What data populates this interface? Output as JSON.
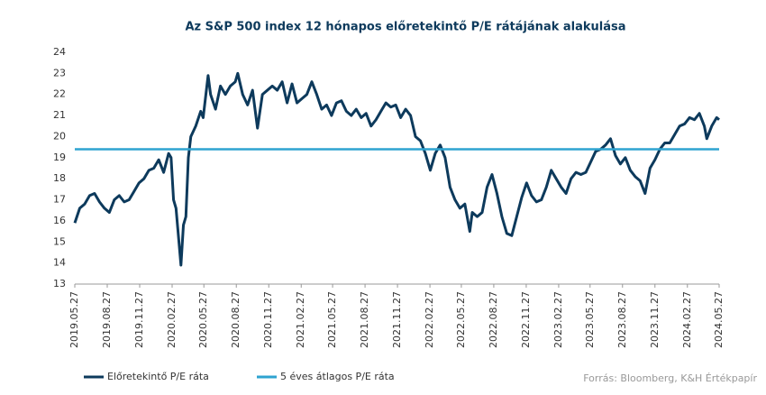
{
  "chart_data": {
    "type": "line",
    "title": "Az S&P 500 index 12 hónapos előretekintő P/E rátájának alakulása",
    "source": "Forrás: Bloomberg, K&H Értékpapír",
    "xlim": [
      "2019.05.27",
      "2024.05.27"
    ],
    "xticks": [
      "2019.05.27",
      "2019.08.27",
      "2019.11.27",
      "2020.02.27",
      "2020.05.27",
      "2020.08.27",
      "2020.11.27",
      "2021.02.27",
      "2021.05.27",
      "2021.08.27",
      "2021.11.27",
      "2022.02.27",
      "2022.05.27",
      "2022.08.27",
      "2022.11.27",
      "2023.02.27",
      "2023.05.27",
      "2023.08.27",
      "2023.11.27",
      "2024.02.27",
      "2024.05.27"
    ],
    "ylim": [
      13,
      24
    ],
    "yticks": [
      13,
      14,
      15,
      16,
      17,
      18,
      19,
      20,
      21,
      22,
      23,
      24
    ],
    "grid": false,
    "legend": "bottom-left",
    "series": [
      {
        "name": "Előretekintő P/E ráta",
        "color": "#0d3a5c",
        "x": [
          "2019.05.27",
          "2019.06.10",
          "2019.06.24",
          "2019.07.08",
          "2019.07.22",
          "2019.08.05",
          "2019.08.19",
          "2019.09.02",
          "2019.09.16",
          "2019.09.30",
          "2019.10.14",
          "2019.10.28",
          "2019.11.11",
          "2019.11.25",
          "2019.12.09",
          "2019.12.23",
          "2020.01.06",
          "2020.01.20",
          "2020.02.03",
          "2020.02.17",
          "2020.02.24",
          "2020.03.02",
          "2020.03.09",
          "2020.03.23",
          "2020.03.30",
          "2020.04.06",
          "2020.04.13",
          "2020.04.20",
          "2020.05.04",
          "2020.05.18",
          "2020.05.25",
          "2020.06.08",
          "2020.06.15",
          "2020.06.29",
          "2020.07.13",
          "2020.07.27",
          "2020.08.10",
          "2020.08.24",
          "2020.08.31",
          "2020.09.14",
          "2020.09.28",
          "2020.10.12",
          "2020.10.26",
          "2020.11.09",
          "2020.11.23",
          "2020.12.07",
          "2020.12.21",
          "2021.01.04",
          "2021.01.18",
          "2021.02.01",
          "2021.02.15",
          "2021.03.01",
          "2021.03.15",
          "2021.03.29",
          "2021.04.12",
          "2021.04.26",
          "2021.05.10",
          "2021.05.24",
          "2021.06.07",
          "2021.06.21",
          "2021.07.05",
          "2021.07.19",
          "2021.08.02",
          "2021.08.16",
          "2021.08.30",
          "2021.09.13",
          "2021.09.27",
          "2021.10.11",
          "2021.10.25",
          "2021.11.08",
          "2021.11.22",
          "2021.12.06",
          "2021.12.20",
          "2022.01.03",
          "2022.01.17",
          "2022.01.31",
          "2022.02.14",
          "2022.02.28",
          "2022.03.14",
          "2022.03.28",
          "2022.04.11",
          "2022.04.25",
          "2022.05.09",
          "2022.05.23",
          "2022.06.06",
          "2022.06.20",
          "2022.06.27",
          "2022.07.11",
          "2022.07.25",
          "2022.08.08",
          "2022.08.22",
          "2022.09.05",
          "2022.09.19",
          "2022.10.03",
          "2022.10.17",
          "2022.10.31",
          "2022.11.14",
          "2022.11.28",
          "2022.12.12",
          "2022.12.26",
          "2023.01.09",
          "2023.01.23",
          "2023.02.06",
          "2023.02.20",
          "2023.03.06",
          "2023.03.20",
          "2023.04.03",
          "2023.04.17",
          "2023.05.01",
          "2023.05.15",
          "2023.05.29",
          "2023.06.12",
          "2023.06.26",
          "2023.07.10",
          "2023.07.24",
          "2023.08.07",
          "2023.08.21",
          "2023.09.04",
          "2023.09.18",
          "2023.10.02",
          "2023.10.16",
          "2023.10.30",
          "2023.11.13",
          "2023.11.27",
          "2023.12.11",
          "2023.12.25",
          "2024.01.08",
          "2024.01.22",
          "2024.02.05",
          "2024.02.19",
          "2024.03.04",
          "2024.03.18",
          "2024.04.01",
          "2024.04.15",
          "2024.04.22",
          "2024.05.06",
          "2024.05.20",
          "2024.05.27"
        ],
        "values": [
          15.9,
          16.6,
          16.8,
          17.2,
          17.3,
          16.9,
          16.6,
          16.4,
          17.0,
          17.2,
          16.9,
          17.0,
          17.4,
          17.8,
          18.0,
          18.4,
          18.5,
          18.9,
          18.3,
          19.2,
          19.0,
          17.0,
          16.6,
          13.9,
          15.8,
          16.2,
          19.0,
          20.0,
          20.5,
          21.2,
          20.9,
          22.9,
          22.0,
          21.3,
          22.4,
          22.0,
          22.4,
          22.6,
          23.0,
          22.0,
          21.5,
          22.2,
          20.4,
          22.0,
          22.2,
          22.4,
          22.2,
          22.6,
          21.6,
          22.5,
          21.6,
          21.8,
          22.0,
          22.6,
          22.0,
          21.3,
          21.5,
          21.0,
          21.6,
          21.7,
          21.2,
          21.0,
          21.3,
          20.9,
          21.1,
          20.5,
          20.8,
          21.2,
          21.6,
          21.4,
          21.5,
          20.9,
          21.3,
          21.0,
          20.0,
          19.8,
          19.2,
          18.4,
          19.2,
          19.6,
          19.0,
          17.6,
          17.0,
          16.6,
          16.8,
          15.5,
          16.4,
          16.2,
          16.4,
          17.6,
          18.2,
          17.3,
          16.2,
          15.4,
          15.3,
          16.2,
          17.1,
          17.8,
          17.2,
          16.9,
          17.0,
          17.6,
          18.4,
          18.0,
          17.6,
          17.3,
          18.0,
          18.3,
          18.2,
          18.3,
          18.8,
          19.3,
          19.4,
          19.6,
          19.9,
          19.1,
          18.7,
          19.0,
          18.4,
          18.1,
          17.9,
          17.3,
          18.5,
          18.9,
          19.4,
          19.7,
          19.7,
          20.1,
          20.5,
          20.6,
          20.9,
          20.8,
          21.1,
          20.5,
          19.9,
          20.5,
          20.9,
          20.8
        ]
      },
      {
        "name": "5 éves átlagos P/E ráta",
        "color": "#2ea3d0",
        "x": [
          "2019.05.27",
          "2024.05.27"
        ],
        "values": [
          19.4,
          19.4
        ]
      }
    ]
  }
}
